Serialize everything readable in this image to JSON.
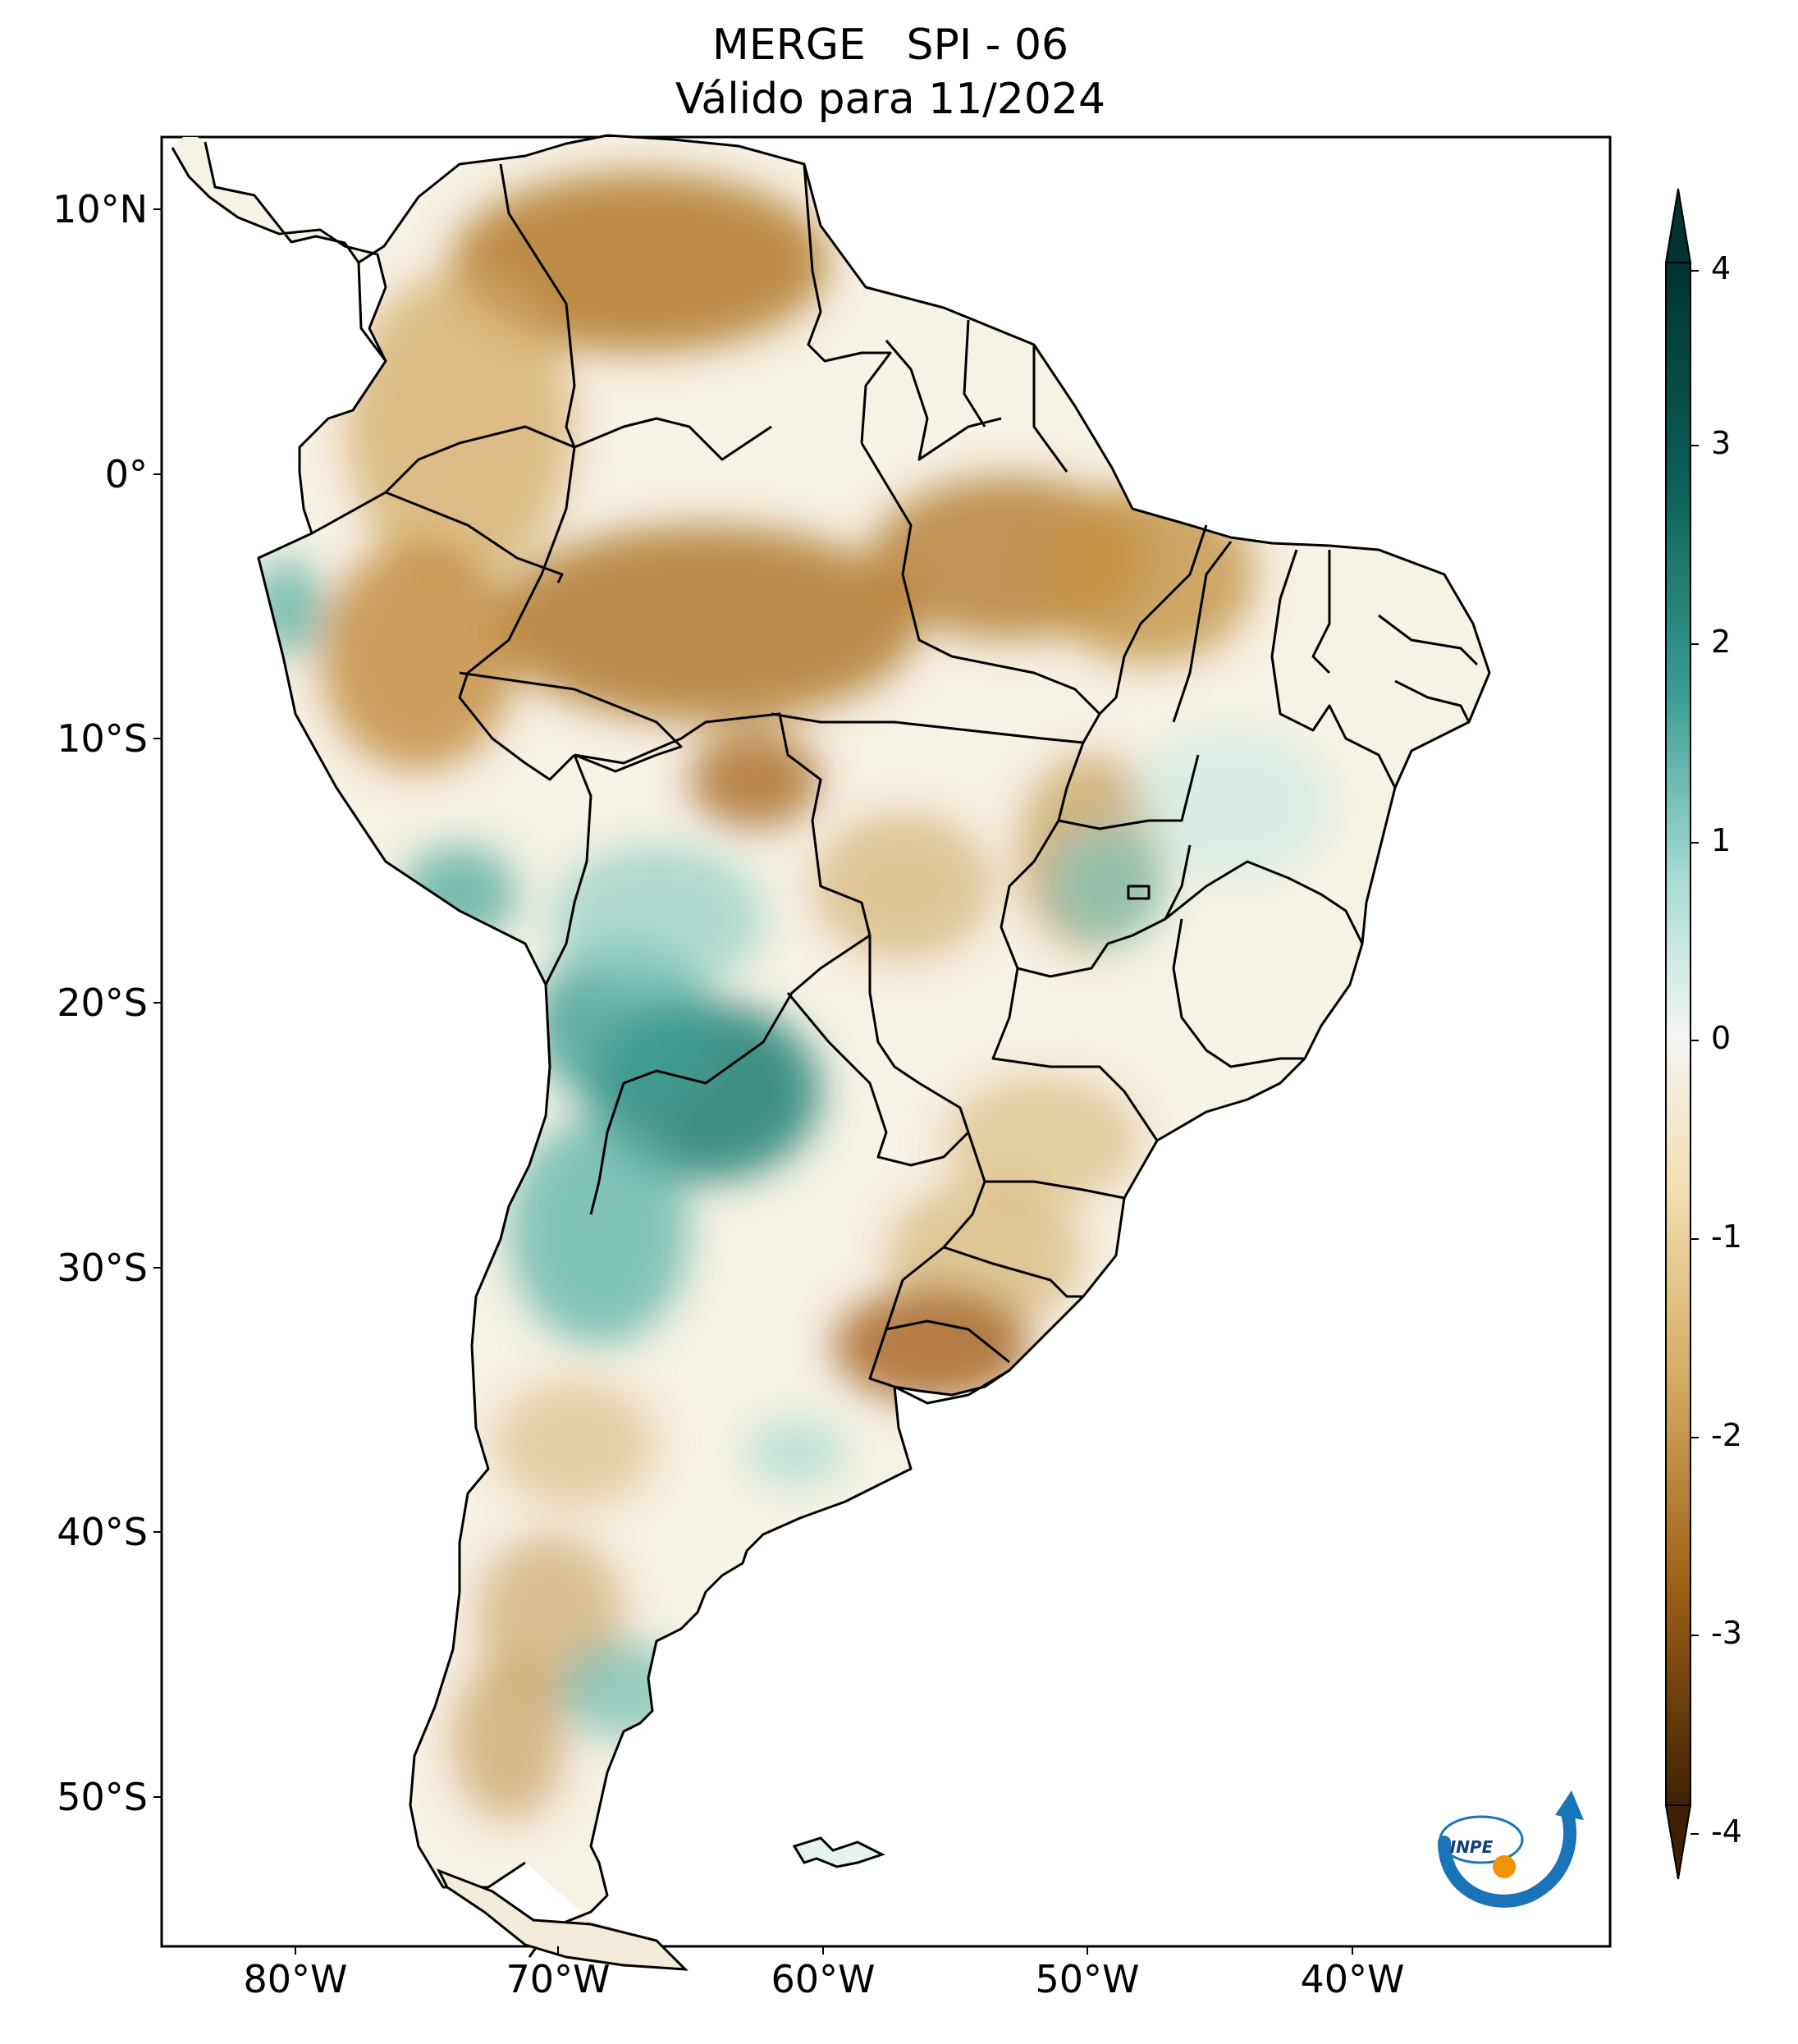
{
  "title": {
    "line1": "MERGE   SPI - 06",
    "line2": "Válido para 11/2024"
  },
  "axes": {
    "lat_ticks": [
      "10°N",
      "0°",
      "10°S",
      "20°S",
      "30°S",
      "40°S",
      "50°S"
    ],
    "lon_ticks": [
      "80°W",
      "70°W",
      "60°W",
      "50°W",
      "40°W"
    ]
  },
  "colorbar": {
    "labels": [
      "4",
      "3",
      "2",
      "1",
      "0",
      "-1",
      "-2",
      "-3",
      "-4"
    ],
    "colors": {
      "max": "#01332f",
      "high": "#1b7d73",
      "mid_high": "#7fc9bf",
      "neutral": "#f5f5f5",
      "mid_low": "#dcc184",
      "low": "#b07424",
      "min": "#583205"
    }
  },
  "logo": {
    "text": "INPE"
  }
}
